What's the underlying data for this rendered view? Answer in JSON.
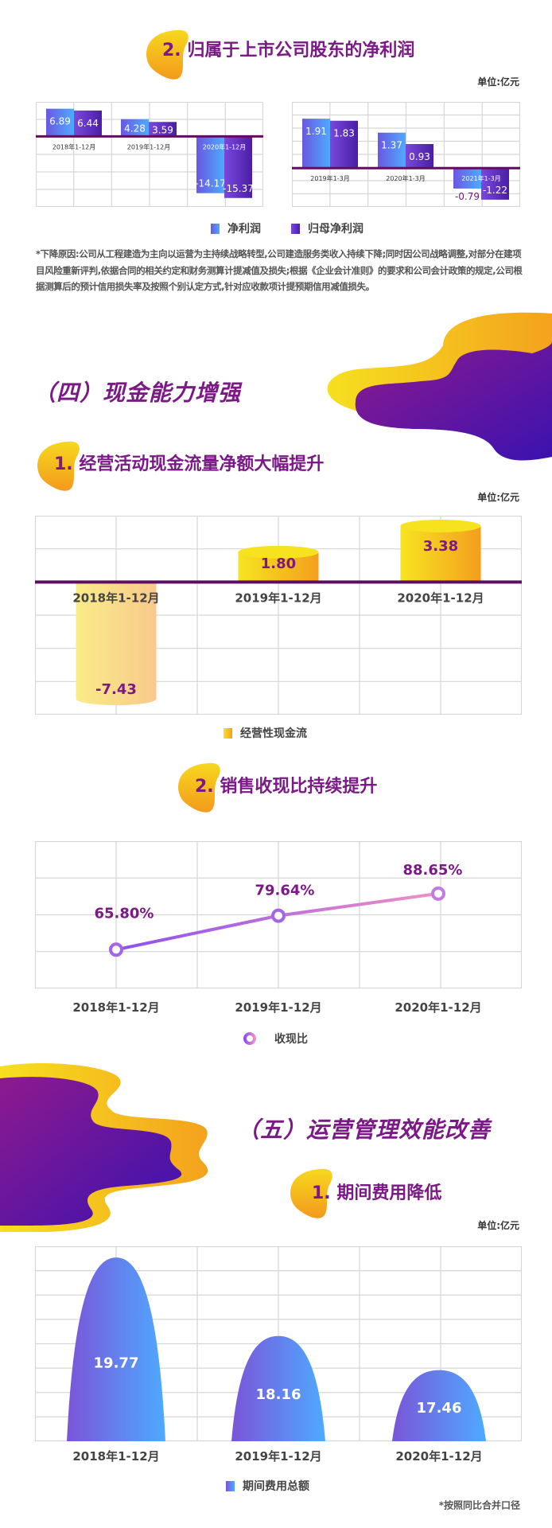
{
  "section_net_profit": {
    "title": "2. 归属于上市公司股东的净利润",
    "unit": "单位:亿元",
    "legend": [
      "净利润",
      "归母净利润"
    ],
    "note": "*下降原因:公司从工程建造为主向以运营为主持续战略转型,公司建造服务类收入持续下降;同时因公司战略调整,对部分在建项目风险重新评判,依据合同的相关约定和财务测算计提减值及损失;根据《企业会计准则》的要求和公司会计政策的规定,公司根据测算后的预计信用损失率及按照个别认定方式,针对应收款项计提预期信用减值损失。"
  },
  "section_four": {
    "heading": "（四）现金能力增强",
    "subtitle1": "1. 经营活动现金流量净额大幅提升",
    "unit": "单位:亿元",
    "legend1": "经营性现金流",
    "subtitle2": "2. 销售收现比持续提升",
    "legend2": "收现比"
  },
  "section_five": {
    "heading": "（五）运营管理效能改善",
    "subtitle": "1. 期间费用降低",
    "unit": "单位:亿元",
    "legend": "期间费用总额",
    "footnote": "*按照同比合并口径"
  },
  "colors": {
    "title": "#7b1a86",
    "zero_line": "#5e0f62",
    "grid": "#d6d6d6",
    "blue": "#4fa8ff",
    "violet": "#5a26b8",
    "yellow": "#f5df22",
    "orange": "#f5a01e"
  },
  "chart_data": [
    {
      "type": "bar",
      "categories": [
        "2018年1-12月",
        "2019年1-12月",
        "2020年1-12月"
      ],
      "series": [
        {
          "name": "净利润",
          "values": [
            6.89,
            4.28,
            -14.17
          ]
        },
        {
          "name": "归母净利润",
          "values": [
            6.44,
            3.59,
            -15.37
          ]
        }
      ],
      "ylim": [
        -17.6,
        8.6
      ],
      "grid": true
    },
    {
      "type": "bar",
      "categories": [
        "2019年1-3月",
        "2020年1-3月",
        "2021年1-3月"
      ],
      "series": [
        {
          "name": "净利润",
          "values": [
            1.91,
            1.37,
            -0.79
          ]
        },
        {
          "name": "归母净利润",
          "values": [
            1.83,
            0.93,
            -1.22
          ]
        }
      ],
      "ylim": [
        -1.5,
        2.56
      ],
      "grid": true
    },
    {
      "type": "bar",
      "categories": [
        "2018年1-12月",
        "2019年1-12月",
        "2020年1-12月"
      ],
      "series": [
        {
          "name": "经营性现金流",
          "values": [
            -7.43,
            1.8,
            3.38
          ]
        }
      ],
      "labels": [
        "-7.43",
        "1.80",
        "3.38"
      ],
      "ylim": [
        -8,
        4
      ],
      "grid": true
    },
    {
      "type": "line",
      "categories": [
        "2018年1-12月",
        "2019年1-12月",
        "2020年1-12月"
      ],
      "series": [
        {
          "name": "收现比",
          "values": [
            65.8,
            79.64,
            88.65
          ]
        }
      ],
      "labels": [
        "65.80%",
        "79.64%",
        "88.65%"
      ],
      "ylim": [
        50,
        110
      ],
      "grid": true
    },
    {
      "type": "area",
      "categories": [
        "2018年1-12月",
        "2019年1-12月",
        "2020年1-12月"
      ],
      "series": [
        {
          "name": "期间费用总额",
          "values": [
            19.77,
            18.16,
            17.46
          ]
        }
      ],
      "labels": [
        "19.77",
        "18.16",
        "17.46"
      ],
      "ylim": [
        16,
        20
      ],
      "grid": true
    }
  ]
}
